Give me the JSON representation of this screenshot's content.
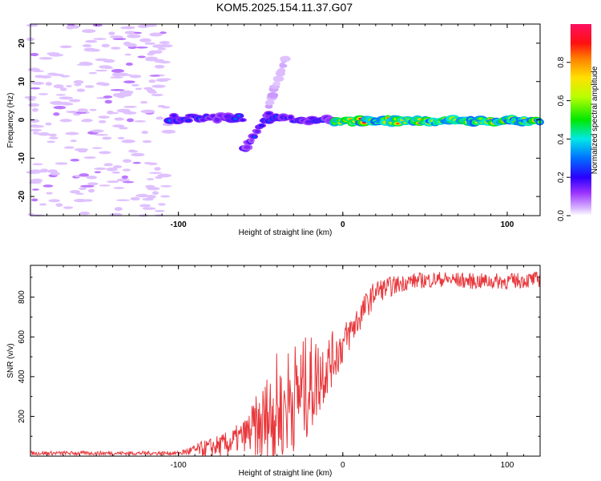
{
  "title": "KOM5.2025.154.11.37.G07",
  "chart_data": [
    {
      "type": "heatmap",
      "xlabel": "Height of straight line (km)",
      "ylabel": "Frequency (Hz)",
      "xlim": [
        -190,
        120
      ],
      "ylim": [
        -25,
        25
      ],
      "x_ticks": [
        -100,
        0,
        100
      ],
      "y_ticks": [
        -20,
        -10,
        0,
        10,
        20
      ],
      "colorbar": {
        "label": "Normalized spectral amplitude",
        "range": [
          0,
          1
        ],
        "ticks": [
          "0.0",
          "0.2",
          "0.4",
          "0.6",
          "0.8"
        ]
      },
      "features": [
        {
          "x_range": [
            -190,
            -105
          ],
          "frequency": "scattered, -25 to 25",
          "amplitude": 0.05
        },
        {
          "x_range": [
            -105,
            -60
          ],
          "frequency_center": 0.5,
          "amplitude": 0.3
        },
        {
          "x_range": [
            -60,
            -45
          ],
          "frequency_start": -8,
          "frequency_end": 2,
          "amplitude": 0.3
        },
        {
          "x_range": [
            -45,
            -35
          ],
          "frequency_start": 4,
          "frequency_end": 16,
          "amplitude": 0.1
        },
        {
          "x_range": [
            -45,
            -5
          ],
          "frequency_center": 0,
          "amplitude": 0.3
        },
        {
          "x_range": [
            -5,
            120
          ],
          "frequency_center": -0.3,
          "amplitude": 0.9
        }
      ]
    },
    {
      "type": "line",
      "xlabel": "Height of straight line (km)",
      "ylabel": "SNR (v/v)",
      "xlim": [
        -190,
        120
      ],
      "ylim": [
        0,
        960
      ],
      "x_ticks": [
        -100,
        0,
        100
      ],
      "y_ticks": [
        200,
        400,
        600,
        800
      ],
      "series_color": "#e8383c",
      "trend": {
        "x": [
          -190,
          -100,
          -90,
          -70,
          -50,
          -30,
          -20,
          -10,
          0,
          10,
          20,
          40,
          60,
          80,
          100,
          120
        ],
        "y": [
          15,
          15,
          30,
          60,
          150,
          300,
          350,
          450,
          560,
          700,
          830,
          880,
          890,
          880,
          880,
          890
        ]
      },
      "noise_envelope": {
        "x": [
          -190,
          -100,
          -85,
          -60,
          -50,
          -40,
          -20,
          -10,
          0,
          20,
          40,
          80,
          120
        ],
        "amplitude": [
          10,
          10,
          40,
          80,
          200,
          300,
          260,
          160,
          100,
          60,
          40,
          40,
          40
        ]
      }
    }
  ]
}
